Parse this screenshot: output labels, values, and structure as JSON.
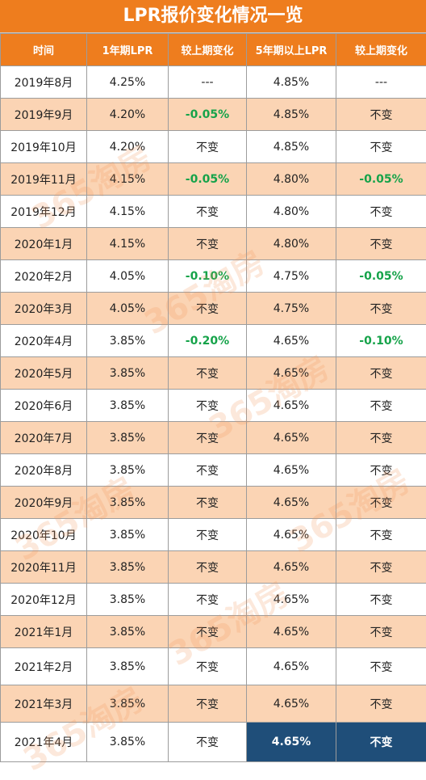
{
  "title": "LPR报价变化情况一览",
  "headers": [
    "时间",
    "1年期LPR",
    "较上期变化",
    "5年期以上LPR",
    "较上期变化"
  ],
  "rows": [
    [
      "2019年8月",
      "4.25%",
      "---",
      "4.85%",
      "---"
    ],
    [
      "2019年9月",
      "4.20%",
      "-0.05%",
      "4.85%",
      "不变"
    ],
    [
      "2019年10月",
      "4.20%",
      "不变",
      "4.85%",
      "不变"
    ],
    [
      "2019年11月",
      "4.15%",
      "-0.05%",
      "4.80%",
      "-0.05%"
    ],
    [
      "2019年12月",
      "4.15%",
      "不变",
      "4.80%",
      "不变"
    ],
    [
      "2020年1月",
      "4.15%",
      "不变",
      "4.80%",
      "不变"
    ],
    [
      "2020年2月",
      "4.05%",
      "-0.10%",
      "4.75%",
      "-0.05%"
    ],
    [
      "2020年3月",
      "4.05%",
      "不变",
      "4.75%",
      "不变"
    ],
    [
      "2020年4月",
      "3.85%",
      "-0.20%",
      "4.65%",
      "-0.10%"
    ],
    [
      "2020年5月",
      "3.85%",
      "不变",
      "4.65%",
      "不变"
    ],
    [
      "2020年6月",
      "3.85%",
      "不变",
      "4.65%",
      "不变"
    ],
    [
      "2020年7月",
      "3.85%",
      "不变",
      "4.65%",
      "不变"
    ],
    [
      "2020年8月",
      "3.85%",
      "不变",
      "4.65%",
      "不变"
    ],
    [
      "2020年9月",
      "3.85%",
      "不变",
      "4.65%",
      "不变"
    ],
    [
      "2020年10月",
      "3.85%",
      "不变",
      "4.65%",
      "不变"
    ],
    [
      "2020年11月",
      "3.85%",
      "不变",
      "4.65%",
      "不变"
    ],
    [
      "2020年12月",
      "3.85%",
      "不变",
      "4.65%",
      "不变"
    ],
    [
      "2021年1月",
      "3.85%",
      "不变",
      "4.65%",
      "不变"
    ],
    [
      "2021年2月",
      "3.85%",
      "不变",
      "4.65%",
      "不变"
    ],
    [
      "2021年3月",
      "3.85%",
      "不变",
      "4.65%",
      "不变"
    ],
    [
      "2021年4月",
      "3.85%",
      "不变",
      "4.65%",
      "不变"
    ]
  ],
  "watermark": "365淘房",
  "colors": {
    "header": "#ee7d1e",
    "stripe": "#fbd4b4",
    "negative": "#16a34a",
    "highlight": "#1f4e79"
  }
}
